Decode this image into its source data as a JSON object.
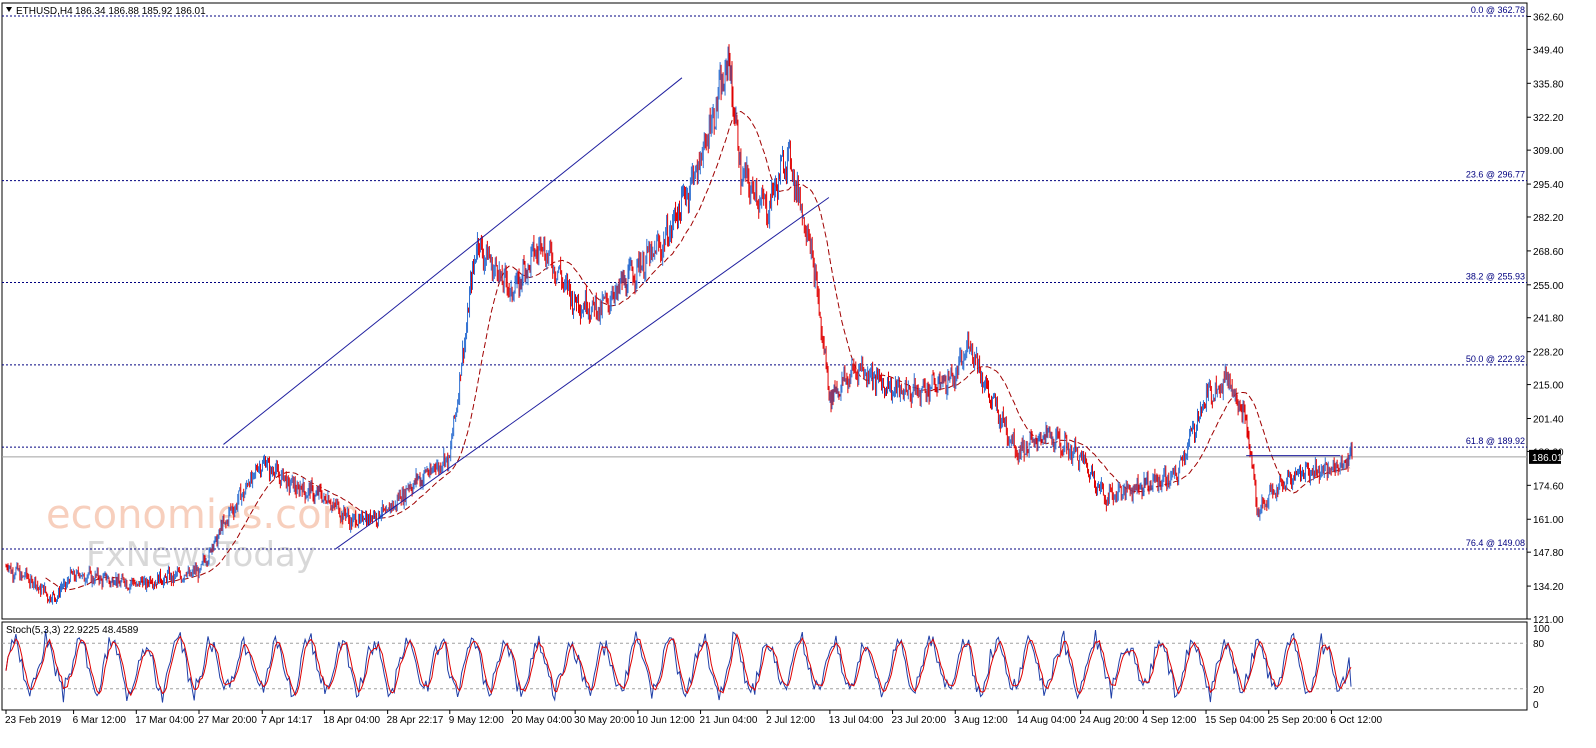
{
  "header": {
    "symbol": "ETHUSD,H4",
    "ohlc": "186.34 186.88 185.92 186.01"
  },
  "watermark": {
    "brand": "economies.com",
    "subbrand": "FxNewsToday"
  },
  "price_axis": {
    "ticks": [
      "362.60",
      "349.40",
      "335.80",
      "322.20",
      "309.00",
      "295.40",
      "282.20",
      "268.60",
      "255.00",
      "241.80",
      "228.20",
      "215.00",
      "201.40",
      "188.20",
      "174.60",
      "161.00",
      "147.80",
      "134.20",
      "121.00"
    ],
    "current_price": "186.01"
  },
  "stoch_axis": {
    "ticks": [
      "100",
      "80",
      "20",
      "0"
    ]
  },
  "time_axis": {
    "labels": [
      "23 Feb 2019",
      "6 Mar 12:00",
      "17 Mar 04:00",
      "27 Mar 20:00",
      "7 Apr 14:17",
      "18 Apr 04:00",
      "28 Apr 22:17",
      "9 May 12:00",
      "20 May 04:00",
      "30 May 20:00",
      "10 Jun 12:00",
      "21 Jun 04:00",
      "2 Jul 12:00",
      "13 Jul 04:00",
      "23 Jul 20:00",
      "3 Aug 12:00",
      "14 Aug 04:00",
      "24 Aug 20:00",
      "4 Sep 12:00",
      "15 Sep 04:00",
      "25 Sep 20:00",
      "6 Oct 12:00"
    ]
  },
  "stoch_header": {
    "label": "Stoch(5,3,3) 22.9225 48.4589"
  },
  "colors": {
    "candle_up": "#2e6fd1",
    "candle_down": "#e00000",
    "ma": "#a00000",
    "fib": "#000080",
    "trendline": "#1f1f9f",
    "stoch_main": "#1f3fa8",
    "stoch_signal": "#e00000"
  },
  "chart_data": [
    {
      "type": "candlestick",
      "title": "ETHUSD,H4",
      "ylim": [
        121.0,
        368.0
      ],
      "x_range": [
        "23 Feb 2019",
        "10 Oct 2019"
      ],
      "last_price": 186.01,
      "anchors": [
        {
          "date": "23 Feb 2019",
          "price": 142
        },
        {
          "date": "27 Feb 2019",
          "price": 137
        },
        {
          "date": "3 Mar 2019",
          "price": 129
        },
        {
          "date": "6 Mar 12:00",
          "price": 139
        },
        {
          "date": "17 Mar 04:00",
          "price": 135
        },
        {
          "date": "27 Mar 20:00",
          "price": 140
        },
        {
          "date": "2 Apr 2019",
          "price": 163
        },
        {
          "date": "7 Apr 14:17",
          "price": 184
        },
        {
          "date": "13 Apr 2019",
          "price": 174
        },
        {
          "date": "18 Apr 04:00",
          "price": 170
        },
        {
          "date": "23 Apr 2019",
          "price": 160
        },
        {
          "date": "28 Apr 22:17",
          "price": 164
        },
        {
          "date": "3 May 2019",
          "price": 175
        },
        {
          "date": "9 May 12:00",
          "price": 186
        },
        {
          "date": "12 May 2019",
          "price": 232
        },
        {
          "date": "14 May 2019",
          "price": 272
        },
        {
          "date": "20 May 04:00",
          "price": 252
        },
        {
          "date": "25 May 2019",
          "price": 272
        },
        {
          "date": "30 May 20:00",
          "price": 248
        },
        {
          "date": "4 Jun 2019",
          "price": 245
        },
        {
          "date": "10 Jun 12:00",
          "price": 262
        },
        {
          "date": "15 Jun 2019",
          "price": 272
        },
        {
          "date": "21 Jun 04:00",
          "price": 305
        },
        {
          "date": "26 Jun 2019",
          "price": 345
        },
        {
          "date": "28 Jun 2019",
          "price": 300
        },
        {
          "date": "2 Jul 12:00",
          "price": 285
        },
        {
          "date": "6 Jul 2019",
          "price": 308
        },
        {
          "date": "10 Jul 2019",
          "price": 270
        },
        {
          "date": "13 Jul 04:00",
          "price": 210
        },
        {
          "date": "18 Jul 2019",
          "price": 222
        },
        {
          "date": "23 Jul 20:00",
          "price": 213
        },
        {
          "date": "28 Jul 2019",
          "price": 212
        },
        {
          "date": "3 Aug 12:00",
          "price": 218
        },
        {
          "date": "6 Aug 2019",
          "price": 232
        },
        {
          "date": "9 Aug 2019",
          "price": 212
        },
        {
          "date": "14 Aug 04:00",
          "price": 188
        },
        {
          "date": "19 Aug 2019",
          "price": 195
        },
        {
          "date": "24 Aug 20:00",
          "price": 186
        },
        {
          "date": "29 Aug 2019",
          "price": 170
        },
        {
          "date": "4 Sep 12:00",
          "price": 175
        },
        {
          "date": "10 Sep 2019",
          "price": 178
        },
        {
          "date": "15 Sep 04:00",
          "price": 210
        },
        {
          "date": "19 Sep 2019",
          "price": 218
        },
        {
          "date": "22 Sep 2019",
          "price": 200
        },
        {
          "date": "24 Sep 2019",
          "price": 164
        },
        {
          "date": "25 Sep 20:00",
          "price": 170
        },
        {
          "date": "1 Oct 2019",
          "price": 180
        },
        {
          "date": "6 Oct 12:00",
          "price": 181
        },
        {
          "date": "10 Oct 2019",
          "price": 186
        }
      ],
      "moving_average_style": "dashed",
      "fibonacci_levels": [
        {
          "label": "0.0 @ 362.78",
          "value": 362.78
        },
        {
          "label": "23.6 @ 296.77",
          "value": 296.77
        },
        {
          "label": "38.2 @ 255.93",
          "value": 255.93
        },
        {
          "label": "50.0 @ 222.92",
          "value": 222.92
        },
        {
          "label": "61.8 @ 189.92",
          "value": 189.92
        },
        {
          "label": "76.4 @ 149.08",
          "value": 149.08
        }
      ],
      "trendlines": [
        {
          "name": "channel-upper",
          "from": {
            "date": "1 Apr 2019",
            "price": 191
          },
          "to": {
            "date": "18 Jun 2019",
            "price": 338
          }
        },
        {
          "name": "channel-lower",
          "from": {
            "date": "20 Apr 2019",
            "price": 149
          },
          "to": {
            "date": "13 Jul 2019",
            "price": 290
          }
        },
        {
          "name": "resistance",
          "from": {
            "date": "22 Sep 2019",
            "price": 186.5
          },
          "to": {
            "date": "8 Oct 2019",
            "price": 186.5
          }
        }
      ]
    },
    {
      "type": "line",
      "title": "Stoch(5,3,3) 22.9225 48.4589",
      "ylim": [
        0,
        100
      ],
      "levels": [
        20,
        80
      ],
      "series": [
        {
          "name": "%K",
          "last": 22.9225
        },
        {
          "name": "%D",
          "last": 48.4589
        }
      ]
    }
  ]
}
